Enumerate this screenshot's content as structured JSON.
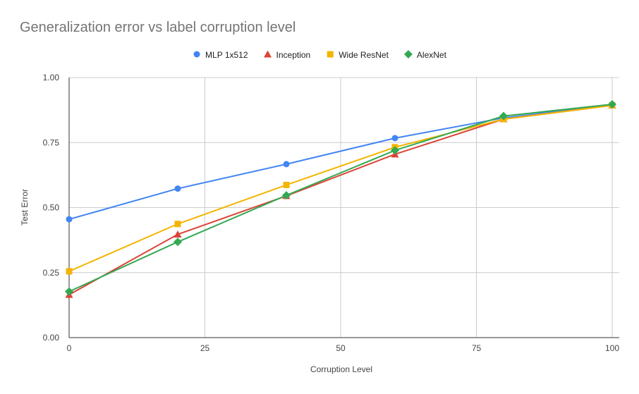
{
  "chart_data": {
    "type": "line",
    "title": "Generalization error vs label corruption level",
    "xlabel": "Corruption Level",
    "ylabel": "Test Error",
    "x": [
      0,
      20,
      40,
      60,
      80,
      100
    ],
    "xlim": [
      0,
      100
    ],
    "ylim": [
      0,
      1
    ],
    "xticks": [
      "0",
      "25",
      "50",
      "75",
      "100"
    ],
    "yticks": [
      "0.00",
      "0.25",
      "0.50",
      "0.75",
      "1.00"
    ],
    "grid": true,
    "legend_position": "top",
    "series": [
      {
        "name": "MLP 1x512",
        "color": "#4285F4",
        "marker": "circle",
        "values": [
          0.455,
          0.573,
          0.667,
          0.767,
          0.845,
          0.895
        ]
      },
      {
        "name": "Inception",
        "color": "#DB4437",
        "marker": "triangle",
        "values": [
          0.165,
          0.397,
          0.545,
          0.705,
          0.84,
          0.893
        ]
      },
      {
        "name": "Wide ResNet",
        "color": "#F4B400",
        "marker": "square",
        "values": [
          0.255,
          0.437,
          0.587,
          0.732,
          0.84,
          0.893
        ]
      },
      {
        "name": "AlexNet",
        "color": "#34A853",
        "marker": "diamond",
        "values": [
          0.177,
          0.368,
          0.547,
          0.72,
          0.852,
          0.897
        ]
      }
    ]
  }
}
